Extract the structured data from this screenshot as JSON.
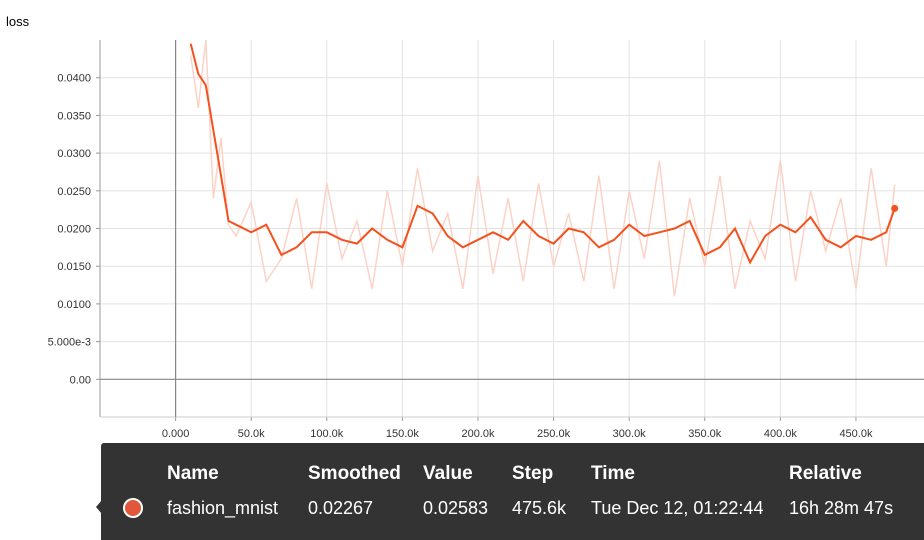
{
  "chart_data": {
    "type": "line",
    "title": "loss",
    "xlabel": "",
    "ylabel": "",
    "xlim": [
      -50000,
      495000
    ],
    "ylim": [
      -0.005,
      0.045
    ],
    "x_ticks": [
      "0.000",
      "50.0k",
      "100.0k",
      "150.0k",
      "200.0k",
      "250.0k",
      "300.0k",
      "350.0k",
      "400.0k",
      "450.0k"
    ],
    "x_tick_values": [
      0,
      50000,
      100000,
      150000,
      200000,
      250000,
      300000,
      350000,
      400000,
      450000
    ],
    "y_ticks": [
      "0.0400",
      "0.0350",
      "0.0300",
      "0.0250",
      "0.0200",
      "0.0150",
      "0.0100",
      "5.000e-3",
      "0.00"
    ],
    "y_tick_values": [
      0.04,
      0.035,
      0.03,
      0.025,
      0.02,
      0.015,
      0.01,
      0.005,
      0.0
    ],
    "grid": true,
    "series": [
      {
        "name": "fashion_mnist",
        "color": "#f4511e",
        "raw_color": "#fbd3c6",
        "x": [
          10000,
          15000,
          20000,
          25000,
          30000,
          35000,
          40000,
          50000,
          60000,
          70000,
          80000,
          90000,
          100000,
          110000,
          120000,
          130000,
          140000,
          150000,
          160000,
          170000,
          180000,
          190000,
          200000,
          210000,
          220000,
          230000,
          240000,
          250000,
          260000,
          270000,
          280000,
          290000,
          300000,
          310000,
          320000,
          330000,
          340000,
          350000,
          360000,
          370000,
          380000,
          390000,
          400000,
          410000,
          420000,
          430000,
          440000,
          450000,
          460000,
          470000,
          475600
        ],
        "smoothed": [
          0.0445,
          0.0405,
          0.039,
          0.033,
          0.027,
          0.021,
          0.0205,
          0.0195,
          0.0205,
          0.0165,
          0.0175,
          0.0195,
          0.0195,
          0.0185,
          0.018,
          0.02,
          0.0185,
          0.0175,
          0.023,
          0.022,
          0.019,
          0.0175,
          0.0185,
          0.0195,
          0.0185,
          0.021,
          0.019,
          0.018,
          0.02,
          0.0195,
          0.0175,
          0.0185,
          0.0205,
          0.019,
          0.0195,
          0.02,
          0.021,
          0.0165,
          0.0175,
          0.02,
          0.0155,
          0.019,
          0.0205,
          0.0195,
          0.0215,
          0.0185,
          0.0175,
          0.019,
          0.0185,
          0.0195,
          0.02267
        ],
        "raw": [
          0.043,
          0.036,
          0.046,
          0.024,
          0.032,
          0.0205,
          0.019,
          0.0235,
          0.013,
          0.016,
          0.024,
          0.012,
          0.026,
          0.016,
          0.021,
          0.012,
          0.025,
          0.015,
          0.028,
          0.017,
          0.022,
          0.012,
          0.027,
          0.014,
          0.024,
          0.013,
          0.026,
          0.015,
          0.022,
          0.013,
          0.027,
          0.012,
          0.025,
          0.016,
          0.029,
          0.011,
          0.024,
          0.015,
          0.027,
          0.012,
          0.021,
          0.016,
          0.029,
          0.013,
          0.025,
          0.017,
          0.024,
          0.012,
          0.028,
          0.015,
          0.02583
        ]
      }
    ]
  },
  "tooltip": {
    "headers": {
      "name": "Name",
      "smoothed": "Smoothed",
      "value": "Value",
      "step": "Step",
      "time": "Time",
      "relative": "Relative"
    },
    "row": {
      "swatch_color": "#e0573b",
      "name": "fashion_mnist",
      "smoothed": "0.02267",
      "value": "0.02583",
      "step": "475.6k",
      "time": "Tue Dec 12, 01:22:44",
      "relative": "16h 28m 47s"
    }
  }
}
